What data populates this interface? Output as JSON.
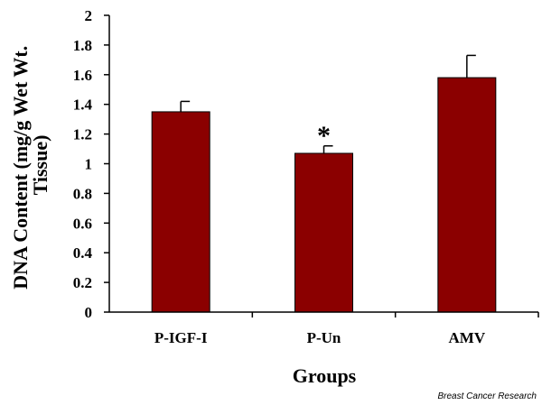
{
  "chart_data": {
    "type": "bar",
    "categories": [
      "P-IGF-I",
      "P-Un",
      "AMV"
    ],
    "values": [
      1.35,
      1.07,
      1.58
    ],
    "errors": [
      0.07,
      0.05,
      0.15
    ],
    "annotations": [
      "",
      "*",
      ""
    ],
    "xlabel": "Groups",
    "ylabel_lines": [
      "DNA Content (mg/g Wet Wt.",
      "Tissue)"
    ],
    "ylim": [
      0,
      2
    ],
    "yticks": [
      "0",
      "0.2",
      "0.4",
      "0.6",
      "0.8",
      "1",
      "1.2",
      "1.4",
      "1.6",
      "1.8",
      "2"
    ],
    "bar_color": "#8b0000",
    "grid": false,
    "legend": "none"
  },
  "credit": "Breast Cancer Research"
}
